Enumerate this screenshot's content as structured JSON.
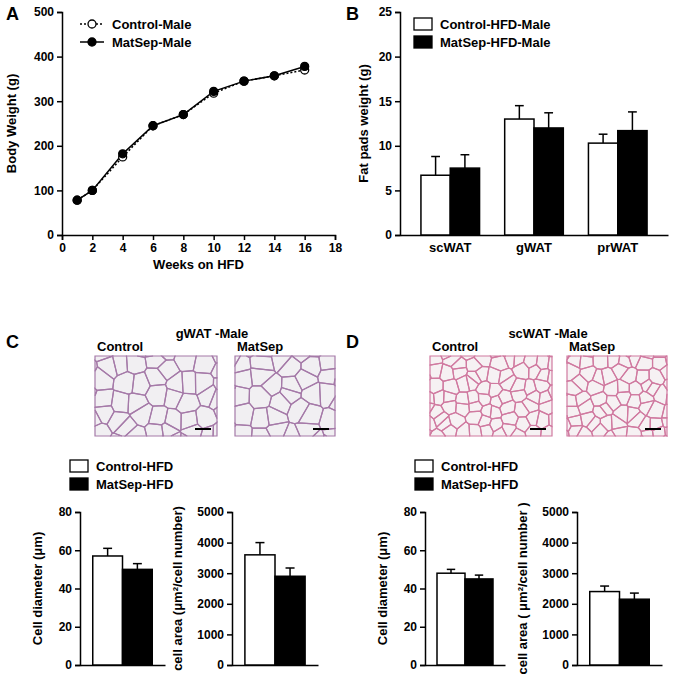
{
  "chart_data": [
    {
      "type": "line",
      "annotations": [
        "A"
      ],
      "xlabel": "Weeks on HFD",
      "ylabel": "Body Weight  (g)",
      "x": [
        1,
        2,
        4,
        6,
        8,
        10,
        12,
        14,
        16
      ],
      "xlim": [
        0,
        18
      ],
      "xticks": [
        0,
        2,
        4,
        6,
        8,
        10,
        12,
        14,
        16,
        18
      ],
      "ylim": [
        0,
        500
      ],
      "yticks": [
        0,
        100,
        200,
        300,
        400,
        500
      ],
      "legend": "top-left",
      "series": [
        {
          "name": "Control-Male",
          "color": "#000000",
          "marker": "circle-open",
          "line_style": "dotted",
          "values": [
            78,
            100,
            175,
            245,
            270,
            318,
            345,
            357,
            370
          ]
        },
        {
          "name": "MatSep-Male",
          "color": "#000000",
          "marker": "circle",
          "line_style": "solid",
          "values": [
            78,
            100,
            182,
            245,
            270,
            322,
            345,
            357,
            378
          ]
        }
      ]
    },
    {
      "type": "bar",
      "annotations": [
        "B"
      ],
      "ylabel": "Fat pads weight (g)",
      "categories": [
        "scWAT",
        "gWAT",
        "prWAT"
      ],
      "ylim": [
        0,
        25
      ],
      "yticks": [
        0,
        5,
        10,
        15,
        20,
        25
      ],
      "legend": "top-left",
      "series": [
        {
          "name": "Control-HFD-Male",
          "color": "#ffffff",
          "values": [
            6.7,
            13.0,
            10.3
          ],
          "errors": [
            2.1,
            1.5,
            1.0
          ]
        },
        {
          "name": "MatSep-HFD-Male",
          "color": "#000000",
          "values": [
            7.5,
            12.0,
            11.7
          ],
          "errors": [
            1.5,
            1.7,
            2.1
          ]
        }
      ]
    },
    {
      "type": "bar",
      "ylabel": "Cell diameter (μm)",
      "categories": [
        null
      ],
      "ylim": [
        0,
        80
      ],
      "yticks": [
        0,
        20,
        40,
        60,
        80
      ],
      "legend": "top-left",
      "series": [
        {
          "name": "Control-HFD",
          "color": "#ffffff",
          "values": [
            57
          ],
          "errors": [
            4
          ]
        },
        {
          "name": "MatSep-HFD",
          "color": "#000000",
          "values": [
            50
          ],
          "errors": [
            3
          ]
        }
      ]
    },
    {
      "type": "bar",
      "ylabel": "cell area (μm²/cell number)",
      "categories": [
        null
      ],
      "ylim": [
        0,
        5000
      ],
      "yticks": [
        0,
        1000,
        2000,
        3000,
        4000,
        5000
      ],
      "series": [
        {
          "color": "#ffffff",
          "values": [
            3600
          ],
          "errors": [
            400
          ]
        },
        {
          "color": "#000000",
          "values": [
            2900
          ],
          "errors": [
            270
          ]
        }
      ]
    },
    {
      "type": "bar",
      "ylabel": "Cell diameter (μm)",
      "categories": [
        null
      ],
      "ylim": [
        0,
        80
      ],
      "yticks": [
        0,
        20,
        40,
        60,
        80
      ],
      "legend": "top-left",
      "series": [
        {
          "name": "Control-HFD",
          "color": "#ffffff",
          "values": [
            48
          ],
          "errors": [
            2
          ]
        },
        {
          "name": "MatSep-HFD",
          "color": "#000000",
          "values": [
            45
          ],
          "errors": [
            2
          ]
        }
      ]
    },
    {
      "type": "bar",
      "ylabel": "cell area ( μm²/cell number )",
      "categories": [
        null
      ],
      "ylim": [
        0,
        5000
      ],
      "yticks": [
        0,
        1000,
        2000,
        3000,
        4000,
        5000
      ],
      "series": [
        {
          "color": "#ffffff",
          "values": [
            2400
          ],
          "errors": [
            180
          ]
        },
        {
          "color": "#000000",
          "values": [
            2150
          ],
          "errors": [
            200
          ]
        }
      ]
    }
  ],
  "image_panels": [
    {
      "label": "C",
      "title": "gWAT -Male",
      "images": [
        "Control",
        "MatSep"
      ]
    },
    {
      "label": "D",
      "title": "scWAT -Male",
      "images": [
        "Control",
        "MatSep"
      ]
    }
  ]
}
